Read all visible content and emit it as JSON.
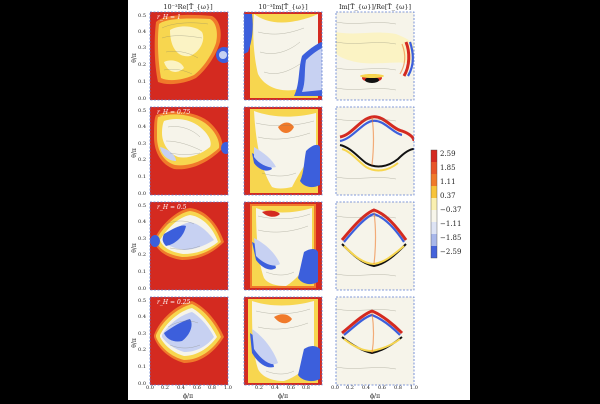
{
  "column_titles": [
    "10⁻³Re[T̃_{ω}]",
    "10⁻³Im[T̃_{ω}]",
    "Im[T̃_{ω}]/Re[T̃_{ω}]"
  ],
  "row_labels": [
    "r_H = 1",
    "r_H = 0.75",
    "r_H = 0.5",
    "r_H = 0.25"
  ],
  "y_axis_label": "θ/π",
  "x_axis_label": "ϕ/π",
  "y_ticks": [
    "0.0",
    "0.1",
    "0.2",
    "0.3",
    "0.4",
    "0.5"
  ],
  "x_ticks": [
    "0.0",
    "0.2",
    "0.4",
    "0.6",
    "0.8",
    "1.0"
  ],
  "colorbar": {
    "ticks": [
      "2.59",
      "1.85",
      "1.11",
      "0.37",
      "−0.37",
      "−1.11",
      "−1.85",
      "−2.59"
    ],
    "colors": [
      "#d42a20",
      "#f07a2a",
      "#f7c43a",
      "#faf0b0",
      "#f7f5ea",
      "#dde3f4",
      "#a8b7ea",
      "#4563db"
    ]
  },
  "palette": {
    "red": "#d42a20",
    "orange": "#f07a2a",
    "yellow": "#f7d64f",
    "pale": "#fbf3c4",
    "offwhite": "#f6f4ea",
    "lightblue": "#c7d1f2",
    "blue": "#3c5fdc",
    "frame": "#5b7bd0"
  }
}
